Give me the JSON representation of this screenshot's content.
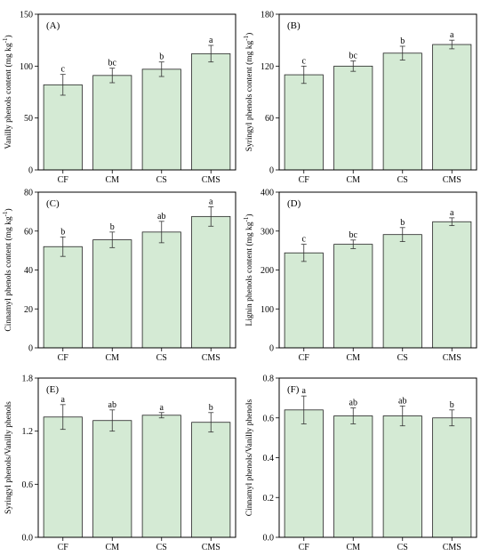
{
  "colors": {
    "bar_fill": "#d4ead4",
    "bar_stroke": "#222222",
    "axis": "#000000"
  },
  "chart_data": [
    {
      "type": "bar",
      "panel_label": "(A)",
      "categories": [
        "CF",
        "CM",
        "CS",
        "CMS"
      ],
      "values": [
        82,
        91,
        97,
        112
      ],
      "errors": [
        10,
        7,
        7,
        8
      ],
      "letters": [
        "c",
        "bc",
        "b",
        "a"
      ],
      "ylabel": "Vanilly phenols content (mg kg",
      "ylabel_sup": "-1",
      "ylabel_end": ")",
      "ylim": [
        0,
        150
      ],
      "yticks": [
        0,
        50,
        100,
        150
      ],
      "yticklabels": [
        "0",
        "50",
        "100",
        "150"
      ]
    },
    {
      "type": "bar",
      "panel_label": "(B)",
      "categories": [
        "CF",
        "CM",
        "CS",
        "CMS"
      ],
      "values": [
        110,
        120,
        135,
        145
      ],
      "errors": [
        10,
        6,
        8,
        5
      ],
      "letters": [
        "c",
        "bc",
        "b",
        "a"
      ],
      "ylabel": "Syringyl phenols content (mg kg",
      "ylabel_sup": "-1",
      "ylabel_end": ")",
      "ylim": [
        0,
        180
      ],
      "yticks": [
        0,
        60,
        120,
        180
      ],
      "yticklabels": [
        "0",
        "60",
        "120",
        "180"
      ]
    },
    {
      "type": "bar",
      "panel_label": "(C)",
      "categories": [
        "CF",
        "CM",
        "CS",
        "CMS"
      ],
      "values": [
        52,
        55.5,
        59.5,
        67.5
      ],
      "errors": [
        5,
        4,
        5.5,
        5
      ],
      "letters": [
        "b",
        "b",
        "ab",
        "a"
      ],
      "ylabel": "Cinnamyl phenols  content (mg kg",
      "ylabel_sup": "-1",
      "ylabel_end": ")",
      "ylim": [
        0,
        80
      ],
      "yticks": [
        0,
        20,
        40,
        60,
        80
      ],
      "yticklabels": [
        "0",
        "20",
        "40",
        "60",
        "80"
      ]
    },
    {
      "type": "bar",
      "panel_label": "(D)",
      "categories": [
        "CF",
        "CM",
        "CS",
        "CMS"
      ],
      "values": [
        244,
        266,
        291,
        324
      ],
      "errors": [
        22,
        11,
        18,
        10
      ],
      "letters": [
        "c",
        "bc",
        "b",
        "a"
      ],
      "ylabel": "Lignin phenols content (mg kg",
      "ylabel_sup": "-1",
      "ylabel_end": ")",
      "ylim": [
        0,
        400
      ],
      "yticks": [
        0,
        100,
        200,
        300,
        400
      ],
      "yticklabels": [
        "0",
        "100",
        "200",
        "300",
        "400"
      ]
    },
    {
      "type": "bar",
      "panel_label": "(E)",
      "categories": [
        "CF",
        "CM",
        "CS",
        "CMS"
      ],
      "values": [
        1.36,
        1.32,
        1.38,
        1.3
      ],
      "errors": [
        0.14,
        0.12,
        0.03,
        0.11
      ],
      "letters": [
        "a",
        "ab",
        "a",
        "b"
      ],
      "ylabel": "Syringyl phenols/Vanilly phenols",
      "ylabel_sup": "",
      "ylabel_end": "",
      "ylim": [
        0,
        1.8
      ],
      "yticks": [
        0,
        0.6,
        1.2,
        1.8
      ],
      "yticklabels": [
        "0.0",
        "0.6",
        "1.2",
        "1.8"
      ]
    },
    {
      "type": "bar",
      "panel_label": "(F)",
      "categories": [
        "CF",
        "CM",
        "CS",
        "CMS"
      ],
      "values": [
        0.64,
        0.61,
        0.61,
        0.6
      ],
      "errors": [
        0.07,
        0.04,
        0.05,
        0.04
      ],
      "letters": [
        "a",
        "ab",
        "ab",
        "b"
      ],
      "ylabel": "Cinnamyl phenols/Vanilly phenols",
      "ylabel_sup": "",
      "ylabel_end": "",
      "ylim": [
        0,
        0.8
      ],
      "yticks": [
        0,
        0.2,
        0.4,
        0.6,
        0.8
      ],
      "yticklabels": [
        "0.0",
        "0.2",
        "0.4",
        "0.6",
        "0.8"
      ]
    }
  ]
}
